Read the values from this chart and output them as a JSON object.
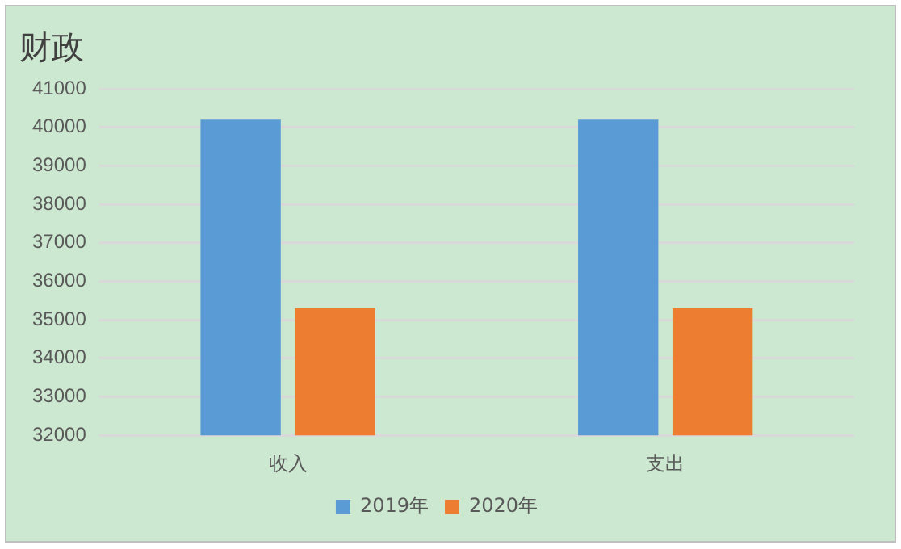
{
  "chart_data": {
    "type": "bar",
    "title": "财政",
    "categories": [
      "收入",
      "支出"
    ],
    "series": [
      {
        "name": "2019年",
        "color": "#5b9bd5",
        "values": [
          40200,
          40200
        ]
      },
      {
        "name": "2020年",
        "color": "#ed7d31",
        "values": [
          35300,
          35300
        ]
      }
    ],
    "ylim": [
      32000,
      41000
    ],
    "yticks": [
      32000,
      33000,
      34000,
      35000,
      36000,
      37000,
      38000,
      39000,
      40000,
      41000
    ],
    "grid": "y",
    "legend": "bottom"
  }
}
